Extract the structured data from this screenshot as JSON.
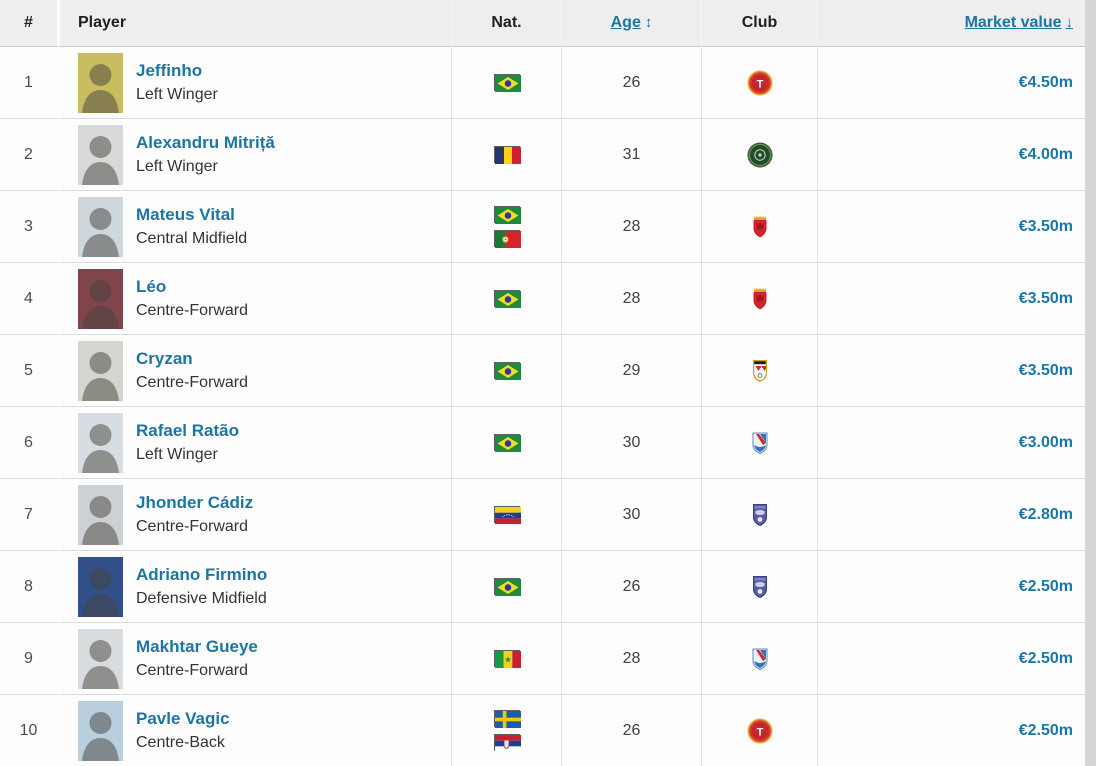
{
  "colors": {
    "link_blue": "#1d75a3",
    "header_bg": "#eeeeee",
    "row_bg": "#fdfdfd",
    "row_border": "#dcdcdc",
    "scrollbar": "#d6d6d6"
  },
  "header": {
    "rank": "#",
    "player": "Player",
    "nat": "Nat.",
    "age": "Age",
    "age_sort_icon": "↕",
    "club": "Club",
    "market_value": "Market value",
    "market_value_sort_icon": "↓"
  },
  "players": [
    {
      "rank": "1",
      "name": "Jeffinho",
      "position": "Left Winger",
      "nationalities": [
        "brazil"
      ],
      "age": "26",
      "club_badge": "red-circle-t",
      "market_value": "€4.50m",
      "photo_color": "#c9bd62"
    },
    {
      "rank": "2",
      "name": "Alexandru Mitriță",
      "position": "Left Winger",
      "nationalities": [
        "romania"
      ],
      "age": "31",
      "club_badge": "green-circle",
      "market_value": "€4.00m",
      "photo_color": "#d9d9d9"
    },
    {
      "rank": "3",
      "name": "Mateus Vital",
      "position": "Central Midfield",
      "nationalities": [
        "brazil",
        "portugal"
      ],
      "age": "28",
      "club_badge": "red-shield-crown",
      "market_value": "€3.50m",
      "photo_color": "#cdd7dc"
    },
    {
      "rank": "4",
      "name": "Léo",
      "position": "Centre-Forward",
      "nationalities": [
        "brazil"
      ],
      "age": "28",
      "club_badge": "red-shield-crown",
      "market_value": "€3.50m",
      "photo_color": "#80454a"
    },
    {
      "rank": "5",
      "name": "Cryzan",
      "position": "Centre-Forward",
      "nationalities": [
        "brazil"
      ],
      "age": "29",
      "club_badge": "white-shield-gold",
      "market_value": "€3.50m",
      "photo_color": "#d2d6cf"
    },
    {
      "rank": "6",
      "name": "Rafael Ratão",
      "position": "Left Winger",
      "nationalities": [
        "brazil"
      ],
      "age": "30",
      "club_badge": "blue-stripes-crest",
      "market_value": "€3.00m",
      "photo_color": "#d7dee3"
    },
    {
      "rank": "7",
      "name": "Jhonder Cádiz",
      "position": "Centre-Forward",
      "nationalities": [
        "venezuela"
      ],
      "age": "30",
      "club_badge": "navy-crest",
      "market_value": "€2.80m",
      "photo_color": "#ccd1d5"
    },
    {
      "rank": "8",
      "name": "Adriano Firmino",
      "position": "Defensive Midfield",
      "nationalities": [
        "brazil"
      ],
      "age": "26",
      "club_badge": "navy-crest",
      "market_value": "€2.50m",
      "photo_color": "#31508a"
    },
    {
      "rank": "9",
      "name": "Makhtar Gueye",
      "position": "Centre-Forward",
      "nationalities": [
        "senegal"
      ],
      "age": "28",
      "club_badge": "blue-stripes-crest",
      "market_value": "€2.50m",
      "photo_color": "#d9dcdf"
    },
    {
      "rank": "10",
      "name": "Pavle Vagic",
      "position": "Centre-Back",
      "nationalities": [
        "sweden",
        "serbia"
      ],
      "age": "26",
      "club_badge": "red-circle-t",
      "market_value": "€2.50m",
      "photo_color": "#b9cfdd"
    }
  ]
}
